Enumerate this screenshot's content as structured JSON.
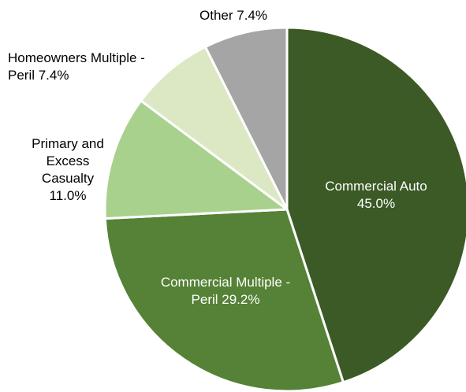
{
  "chart_data": {
    "type": "pie",
    "title": "",
    "start_angle_deg": 0,
    "direction": "clockwise",
    "legend": "none",
    "slices": [
      {
        "label": "Commercial Auto",
        "value": 45.0,
        "percent_label": "45.0%",
        "color": "#3b5a25",
        "label_inside": true,
        "label_lines": [
          "Commercial Auto",
          "45.0%"
        ]
      },
      {
        "label": "Commercial Multiple - Peril",
        "value": 29.2,
        "percent_label": "29.2%",
        "color": "#558236",
        "label_inside": true,
        "label_lines": [
          "Commercial Multiple -",
          "Peril 29.2%"
        ]
      },
      {
        "label": "Primary and Excess Casualty",
        "value": 11.0,
        "percent_label": "11.0%",
        "color": "#a9d18e",
        "label_inside": false,
        "label_lines": [
          "Primary and",
          "Excess",
          "Casualty",
          "11.0%"
        ]
      },
      {
        "label": "Homeowners Multiple - Peril",
        "value": 7.4,
        "percent_label": "7.4%",
        "color": "#dbe8c3",
        "label_inside": false,
        "label_lines": [
          "Homeowners Multiple -",
          "Peril 7.4%"
        ]
      },
      {
        "label": "Other",
        "value": 7.4,
        "percent_label": "7.4%",
        "color": "#a5a5a5",
        "label_inside": false,
        "label_lines": [
          "Other 7.4%"
        ]
      }
    ]
  }
}
